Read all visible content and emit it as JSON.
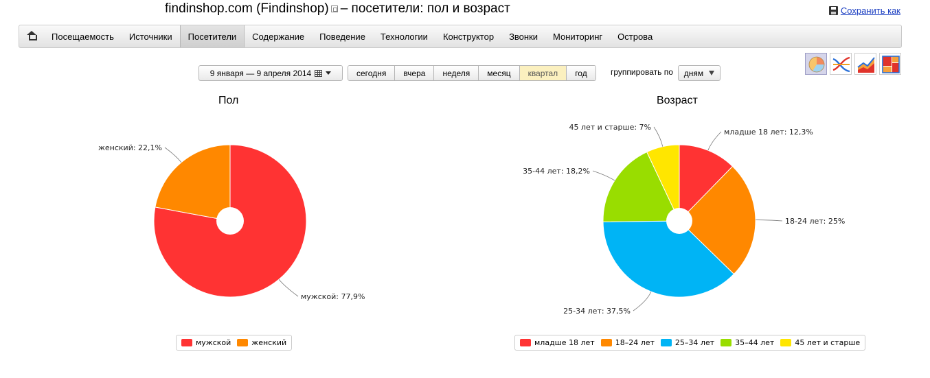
{
  "header": {
    "title": "findinshop.com (Findinshop)",
    "title_suffix": "– посетители: пол и возраст",
    "save_label": "Сохранить как"
  },
  "nav": {
    "home_icon": "home-icon",
    "items": [
      "Посещаемость",
      "Источники",
      "Посетители",
      "Содержание",
      "Поведение",
      "Технологии",
      "Конструктор",
      "Звонки",
      "Мониторинг",
      "Острова"
    ],
    "active": "Посетители"
  },
  "toolbar": {
    "date_range": "9 января — 9 апреля 2014",
    "periods": [
      "сегодня",
      "вчера",
      "неделя",
      "месяц",
      "квартал",
      "год"
    ],
    "active_period": "квартал",
    "group_label": "группировать по",
    "group_value": "дням",
    "chart_type_icons": [
      "pie-chart-icon",
      "line-chart-icon",
      "area-chart-icon",
      "treemap-chart-icon"
    ],
    "active_chart_type": "pie-chart-icon"
  },
  "chart_data": [
    {
      "type": "pie",
      "title": "Пол",
      "start_angle_deg": 0,
      "slices": [
        {
          "label": "мужской",
          "value": 77.9,
          "display": "мужской: 77,9%",
          "color": "#ff3333"
        },
        {
          "label": "женский",
          "value": 22.1,
          "display": "женский: 22,1%",
          "color": "#ff8800"
        }
      ],
      "legend": [
        "мужской",
        "женский"
      ],
      "legend_position": "bottom"
    },
    {
      "type": "pie",
      "title": "Возраст",
      "start_angle_deg": 0,
      "slices": [
        {
          "label": "младше 18 лет",
          "value": 12.3,
          "display": "младше 18 лет: 12,3%",
          "color": "#ff3333"
        },
        {
          "label": "18–24 лет",
          "value": 25,
          "display": "18-24 лет: 25%",
          "color": "#ff8800"
        },
        {
          "label": "25–34 лет",
          "value": 37.5,
          "display": "25-34 лет: 37,5%",
          "color": "#00b4f5"
        },
        {
          "label": "35–44 лет",
          "value": 18.2,
          "display": "35-44 лет: 18,2%",
          "color": "#99dd00"
        },
        {
          "label": "45 лет и старше",
          "value": 7,
          "display": "45 лет и старше: 7%",
          "color": "#ffe600"
        }
      ],
      "legend": [
        "младше 18 лет",
        "18–24 лет",
        "25–34 лет",
        "35–44 лет",
        "45 лет и старше"
      ],
      "legend_position": "bottom"
    }
  ]
}
